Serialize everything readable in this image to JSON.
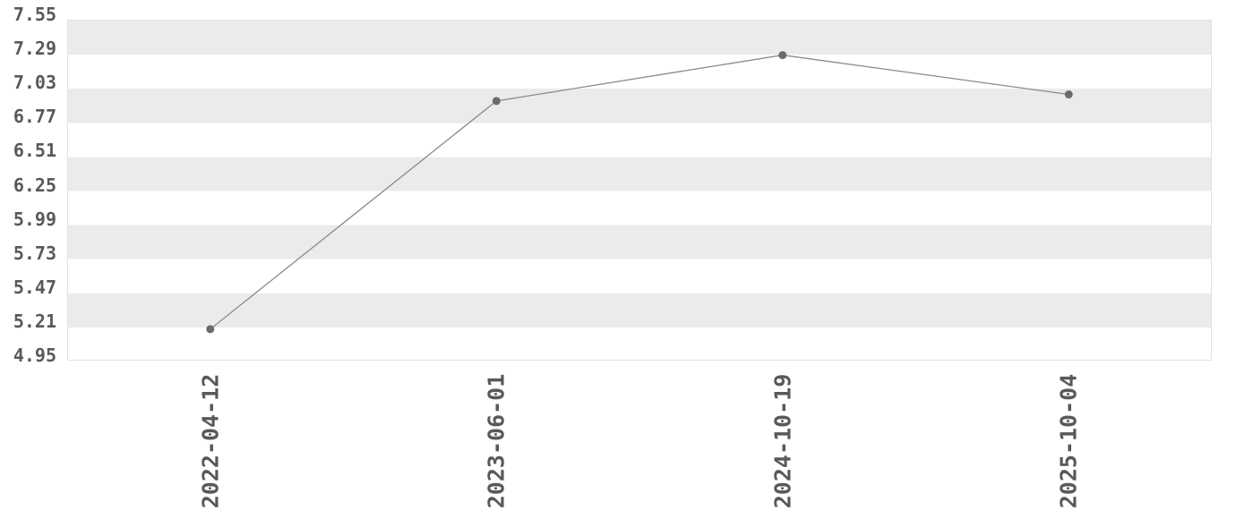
{
  "chart_data": {
    "type": "line",
    "x": [
      "2022-04-12",
      "2023-06-01",
      "2024-10-19",
      "2025-10-04"
    ],
    "values": [
      5.19,
      6.93,
      7.28,
      6.98
    ],
    "title": "",
    "xlabel": "",
    "ylabel": "",
    "ylim": [
      4.95,
      7.55
    ],
    "ytick_step": 0.26,
    "yticks": [
      "7.55",
      "7.29",
      "7.03",
      "6.77",
      "6.51",
      "6.25",
      "5.99",
      "5.73",
      "5.47",
      "5.21",
      "4.95"
    ],
    "legend": null,
    "grid": "horizontal-bands",
    "marker": "circle"
  },
  "colors": {
    "line": "#8a8a8a",
    "marker": "#6b6b6b",
    "band": "#ebebeb",
    "background": "#ffffff",
    "border": "#e2e2e2",
    "tick_text": "#58595b"
  }
}
